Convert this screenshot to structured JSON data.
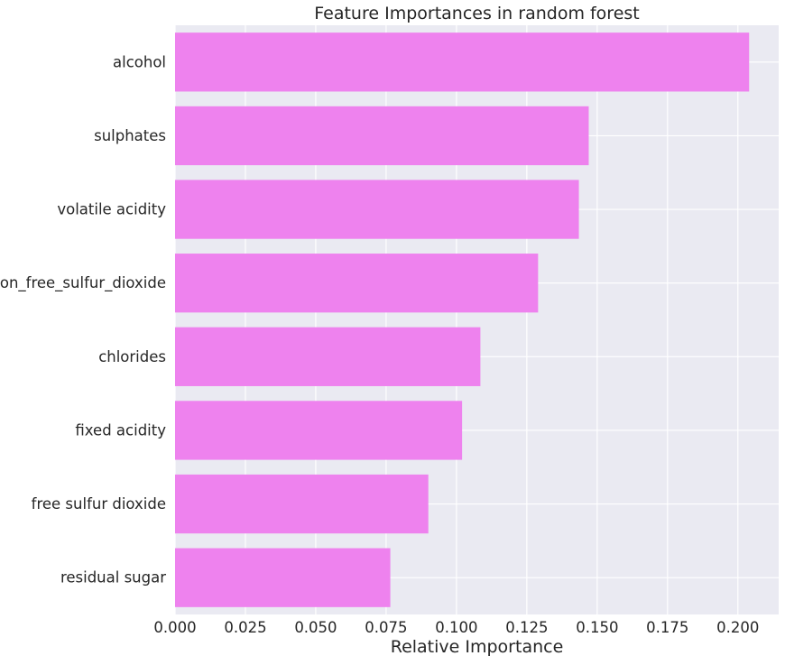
{
  "chart_data": {
    "type": "bar",
    "orientation": "horizontal",
    "title": "Feature Importances in random forest",
    "xlabel": "Relative Importance",
    "ylabel": "",
    "categories": [
      "alcohol",
      "sulphates",
      "volatile acidity",
      "non_free_sulfur_dioxide",
      "chlorides",
      "fixed acidity",
      "free sulfur dioxide",
      "residual sugar"
    ],
    "values": [
      0.204,
      0.147,
      0.1435,
      0.129,
      0.1085,
      0.102,
      0.09,
      0.0765
    ],
    "xlim": [
      0.0,
      0.2145
    ],
    "xticks": [
      0.0,
      0.025,
      0.05,
      0.075,
      0.1,
      0.125,
      0.15,
      0.175,
      0.2
    ],
    "xtick_labels": [
      "0.000",
      "0.025",
      "0.050",
      "0.075",
      "0.100",
      "0.125",
      "0.150",
      "0.175",
      "0.200"
    ],
    "grid": true,
    "colors": {
      "bar": "#ee82ee",
      "plot_background": "#eaeaf2",
      "grid": "#ffffff",
      "text": "#262626"
    }
  }
}
